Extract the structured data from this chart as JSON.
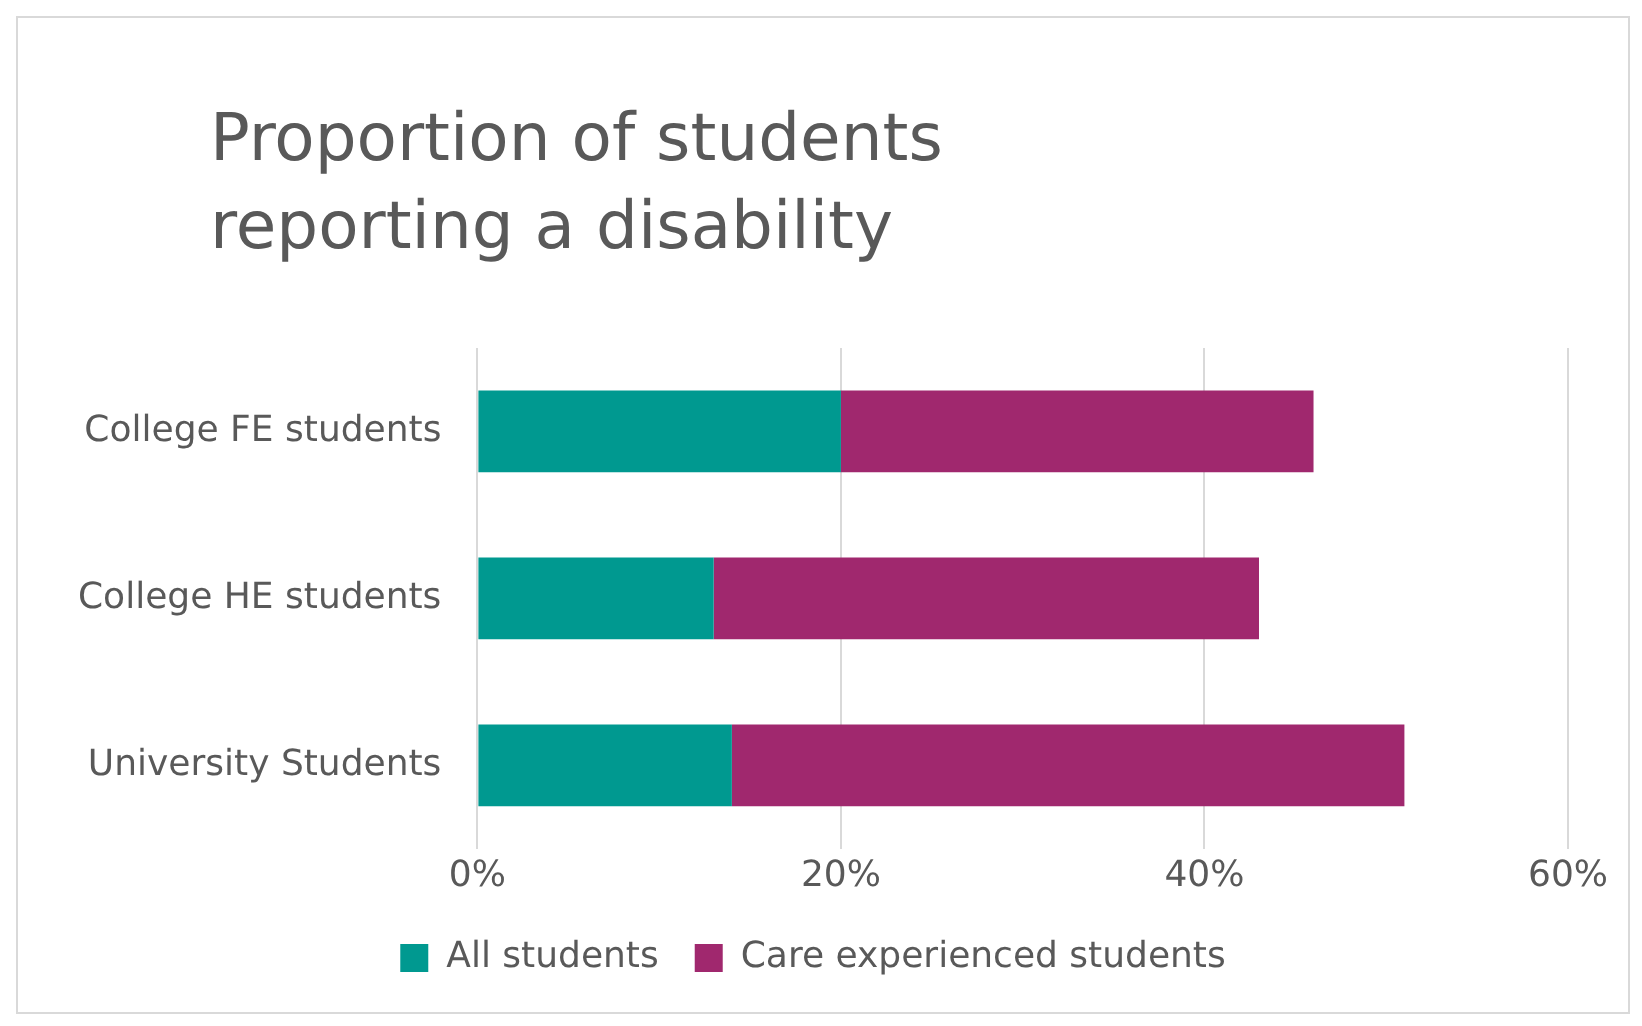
{
  "chart_data": {
    "type": "bar",
    "title": "Proportion of students reporting a disability",
    "orientation": "horizontal",
    "stacked": true,
    "categories": [
      "College FE students",
      "College HE students",
      "University Students"
    ],
    "series": [
      {
        "name": "All students",
        "color": "#009990",
        "values": [
          20,
          13,
          14
        ]
      },
      {
        "name": "Care experienced students",
        "color": "#a0286e",
        "values": [
          26,
          30,
          37
        ]
      }
    ],
    "xlim": [
      0,
      60
    ],
    "xticks": [
      {
        "value": 0,
        "label": "0%"
      },
      {
        "value": 20,
        "label": "20%"
      },
      {
        "value": 40,
        "label": "40%"
      },
      {
        "value": 60,
        "label": "60%"
      }
    ],
    "grid": "x",
    "legend": "bottom"
  }
}
